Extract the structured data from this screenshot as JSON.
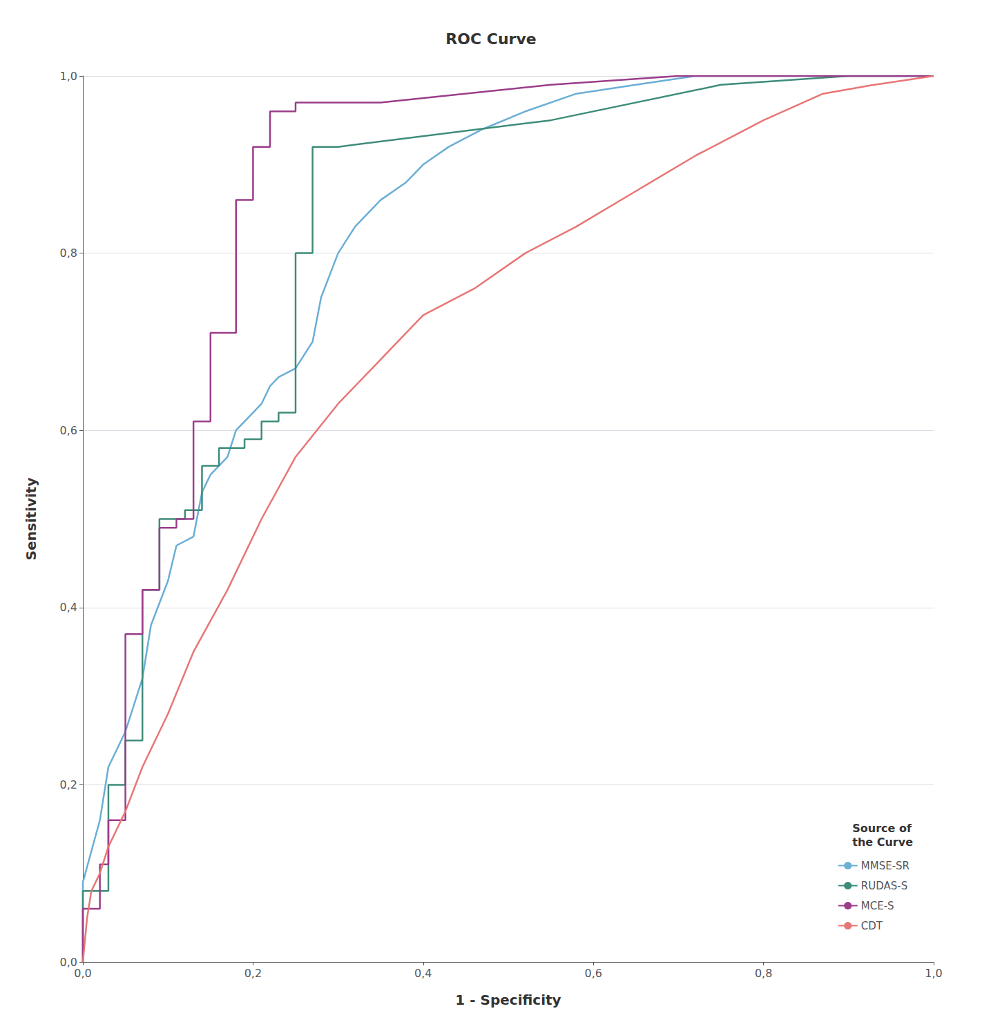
{
  "chart_data": {
    "type": "line",
    "title": "ROC Curve",
    "xlabel": "1 - Specificity",
    "ylabel": "Sensitivity",
    "legend_title": "Source of\nthe Curve",
    "legend": "lower right",
    "grid": "y",
    "series": [
      {
        "name": "MMSE-SR",
        "color": "#6baed6",
        "x": [
          0.0,
          0.0,
          0.02,
          0.03,
          0.05,
          0.07,
          0.08,
          0.1,
          0.11,
          0.13,
          0.14,
          0.15,
          0.17,
          0.18,
          0.2,
          0.21,
          0.22,
          0.23,
          0.25,
          0.27,
          0.28,
          0.3,
          0.32,
          0.35,
          0.38,
          0.4,
          0.43,
          0.47,
          0.52,
          0.58,
          0.65,
          0.72,
          0.8,
          0.88,
          0.95,
          1.0
        ],
        "values": [
          0.0,
          0.09,
          0.16,
          0.22,
          0.26,
          0.32,
          0.38,
          0.43,
          0.47,
          0.48,
          0.53,
          0.55,
          0.57,
          0.6,
          0.62,
          0.63,
          0.65,
          0.66,
          0.67,
          0.7,
          0.75,
          0.8,
          0.83,
          0.86,
          0.88,
          0.9,
          0.92,
          0.94,
          0.96,
          0.98,
          0.99,
          1.0,
          1.0,
          1.0,
          1.0,
          1.0
        ]
      },
      {
        "name": "RUDAS-S",
        "color": "#3d8c7a",
        "x": [
          0.0,
          0.0,
          0.03,
          0.03,
          0.05,
          0.05,
          0.07,
          0.07,
          0.09,
          0.09,
          0.12,
          0.12,
          0.14,
          0.14,
          0.16,
          0.16,
          0.19,
          0.19,
          0.21,
          0.21,
          0.23,
          0.23,
          0.25,
          0.25,
          0.27,
          0.27,
          0.3,
          0.55,
          0.75,
          0.9,
          1.0
        ],
        "values": [
          0.0,
          0.08,
          0.08,
          0.2,
          0.2,
          0.25,
          0.25,
          0.42,
          0.42,
          0.5,
          0.5,
          0.51,
          0.51,
          0.56,
          0.56,
          0.58,
          0.58,
          0.59,
          0.59,
          0.61,
          0.61,
          0.62,
          0.62,
          0.8,
          0.8,
          0.92,
          0.92,
          0.95,
          0.99,
          1.0,
          1.0
        ]
      },
      {
        "name": "MCE-S",
        "color": "#9b3d8a",
        "x": [
          0.0,
          0.0,
          0.02,
          0.02,
          0.03,
          0.03,
          0.05,
          0.05,
          0.07,
          0.07,
          0.09,
          0.09,
          0.11,
          0.11,
          0.13,
          0.13,
          0.15,
          0.15,
          0.18,
          0.18,
          0.2,
          0.2,
          0.22,
          0.22,
          0.25,
          0.25,
          0.35,
          0.55,
          0.7,
          1.0
        ],
        "values": [
          0.0,
          0.06,
          0.06,
          0.11,
          0.11,
          0.16,
          0.16,
          0.37,
          0.37,
          0.42,
          0.42,
          0.49,
          0.49,
          0.5,
          0.5,
          0.61,
          0.61,
          0.71,
          0.71,
          0.86,
          0.86,
          0.92,
          0.92,
          0.96,
          0.96,
          0.97,
          0.97,
          0.99,
          1.0,
          1.0
        ]
      },
      {
        "name": "CDT",
        "color": "#e87575",
        "x": [
          0.0,
          0.005,
          0.01,
          0.02,
          0.03,
          0.05,
          0.07,
          0.1,
          0.13,
          0.17,
          0.21,
          0.25,
          0.3,
          0.35,
          0.4,
          0.46,
          0.52,
          0.58,
          0.65,
          0.72,
          0.8,
          0.87,
          0.93,
          1.0
        ],
        "values": [
          0.0,
          0.05,
          0.08,
          0.1,
          0.13,
          0.17,
          0.22,
          0.28,
          0.35,
          0.42,
          0.5,
          0.57,
          0.63,
          0.68,
          0.73,
          0.76,
          0.8,
          0.83,
          0.87,
          0.91,
          0.95,
          0.98,
          0.99,
          1.0
        ]
      }
    ],
    "xlim": [
      0.0,
      1.0
    ],
    "ylim": [
      0.0,
      1.0
    ],
    "xticks": [
      {
        "value": 0.0,
        "label": "0,0"
      },
      {
        "value": 0.2,
        "label": "0,2"
      },
      {
        "value": 0.4,
        "label": "0,4"
      },
      {
        "value": 0.6,
        "label": "0,6"
      },
      {
        "value": 0.8,
        "label": "0,8"
      },
      {
        "value": 1.0,
        "label": "1,0"
      }
    ],
    "yticks": [
      {
        "value": 0.0,
        "label": "0,0"
      },
      {
        "value": 0.2,
        "label": "0,2"
      },
      {
        "value": 0.4,
        "label": "0,4"
      },
      {
        "value": 0.6,
        "label": "0,6"
      },
      {
        "value": 0.8,
        "label": "0,8"
      },
      {
        "value": 1.0,
        "label": "1,0"
      }
    ]
  }
}
